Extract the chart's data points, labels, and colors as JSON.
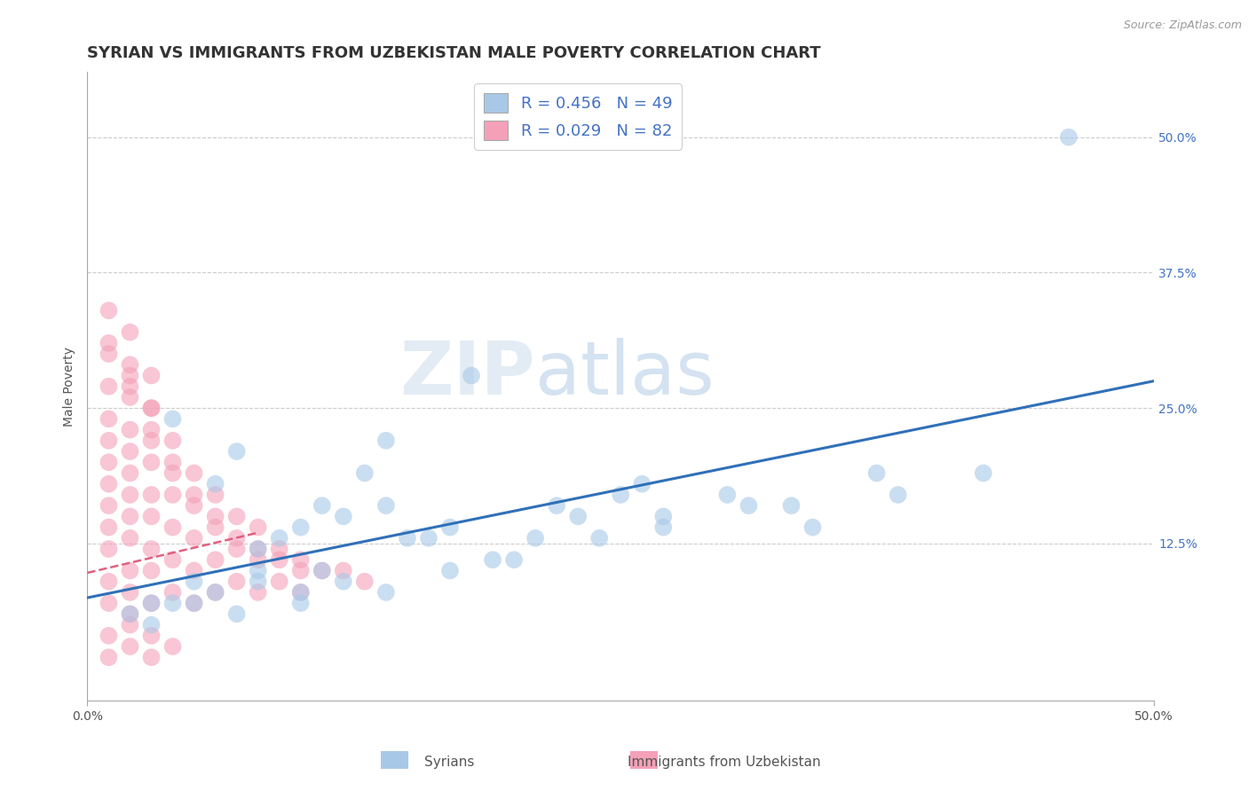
{
  "title": "SYRIAN VS IMMIGRANTS FROM UZBEKISTAN MALE POVERTY CORRELATION CHART",
  "source": "Source: ZipAtlas.com",
  "ylabel": "Male Poverty",
  "ytick_vals": [
    0.5,
    0.375,
    0.25,
    0.125
  ],
  "ytick_labels": [
    "50.0%",
    "37.5%",
    "25.0%",
    "12.5%"
  ],
  "xmin": 0.0,
  "xmax": 0.5,
  "ymin": -0.02,
  "ymax": 0.56,
  "legend_label1": "Syrians",
  "legend_label2": "Immigrants from Uzbekistan",
  "color_blue": "#a8c8e8",
  "color_pink": "#f4a0b8",
  "color_blue_line": "#3070b8",
  "color_pink_line": "#e06080",
  "blue_line_x": [
    0.0,
    0.5
  ],
  "blue_line_y": [
    0.075,
    0.275
  ],
  "pink_line_x": [
    0.0,
    0.08
  ],
  "pink_line_y": [
    0.098,
    0.135
  ],
  "grid_yvals": [
    0.5,
    0.375,
    0.25,
    0.125
  ],
  "title_fontsize": 13,
  "axis_fontsize": 10,
  "legend_fontsize": 13,
  "blue_scatter_x": [
    0.46,
    0.04,
    0.18,
    0.08,
    0.09,
    0.11,
    0.13,
    0.15,
    0.17,
    0.22,
    0.25,
    0.27,
    0.3,
    0.33,
    0.37,
    0.14,
    0.06,
    0.07,
    0.1,
    0.12,
    0.14,
    0.16,
    0.19,
    0.21,
    0.23,
    0.26,
    0.03,
    0.05,
    0.08,
    0.11,
    0.14,
    0.17,
    0.2,
    0.24,
    0.27,
    0.31,
    0.34,
    0.38,
    0.42,
    0.02,
    0.04,
    0.06,
    0.08,
    0.1,
    0.12,
    0.03,
    0.05,
    0.07,
    0.1
  ],
  "blue_scatter_y": [
    0.5,
    0.24,
    0.28,
    0.1,
    0.13,
    0.16,
    0.19,
    0.13,
    0.14,
    0.16,
    0.17,
    0.15,
    0.17,
    0.16,
    0.19,
    0.22,
    0.18,
    0.21,
    0.14,
    0.15,
    0.16,
    0.13,
    0.11,
    0.13,
    0.15,
    0.18,
    0.07,
    0.09,
    0.12,
    0.1,
    0.08,
    0.1,
    0.11,
    0.13,
    0.14,
    0.16,
    0.14,
    0.17,
    0.19,
    0.06,
    0.07,
    0.08,
    0.09,
    0.08,
    0.09,
    0.05,
    0.07,
    0.06,
    0.07
  ],
  "pink_scatter_x": [
    0.01,
    0.01,
    0.01,
    0.01,
    0.01,
    0.01,
    0.01,
    0.01,
    0.01,
    0.01,
    0.01,
    0.02,
    0.02,
    0.02,
    0.02,
    0.02,
    0.02,
    0.02,
    0.02,
    0.02,
    0.02,
    0.02,
    0.03,
    0.03,
    0.03,
    0.03,
    0.03,
    0.03,
    0.03,
    0.03,
    0.04,
    0.04,
    0.04,
    0.04,
    0.04,
    0.05,
    0.05,
    0.05,
    0.05,
    0.05,
    0.06,
    0.06,
    0.06,
    0.06,
    0.07,
    0.07,
    0.07,
    0.08,
    0.08,
    0.08,
    0.09,
    0.09,
    0.1,
    0.1,
    0.11,
    0.12,
    0.13,
    0.01,
    0.01,
    0.02,
    0.02,
    0.02,
    0.03,
    0.03,
    0.03,
    0.04,
    0.04,
    0.05,
    0.06,
    0.07,
    0.08,
    0.09,
    0.1,
    0.01,
    0.01,
    0.02,
    0.02,
    0.03,
    0.03,
    0.04
  ],
  "pink_scatter_y": [
    0.3,
    0.27,
    0.24,
    0.22,
    0.2,
    0.18,
    0.16,
    0.14,
    0.12,
    0.09,
    0.07,
    0.28,
    0.26,
    0.23,
    0.21,
    0.19,
    0.17,
    0.15,
    0.13,
    0.1,
    0.08,
    0.06,
    0.25,
    0.22,
    0.2,
    0.17,
    0.15,
    0.12,
    0.1,
    0.07,
    0.2,
    0.17,
    0.14,
    0.11,
    0.08,
    0.19,
    0.16,
    0.13,
    0.1,
    0.07,
    0.17,
    0.14,
    0.11,
    0.08,
    0.15,
    0.12,
    0.09,
    0.14,
    0.11,
    0.08,
    0.12,
    0.09,
    0.11,
    0.08,
    0.1,
    0.1,
    0.09,
    0.34,
    0.31,
    0.32,
    0.29,
    0.27,
    0.28,
    0.25,
    0.23,
    0.22,
    0.19,
    0.17,
    0.15,
    0.13,
    0.12,
    0.11,
    0.1,
    0.04,
    0.02,
    0.05,
    0.03,
    0.04,
    0.02,
    0.03
  ]
}
